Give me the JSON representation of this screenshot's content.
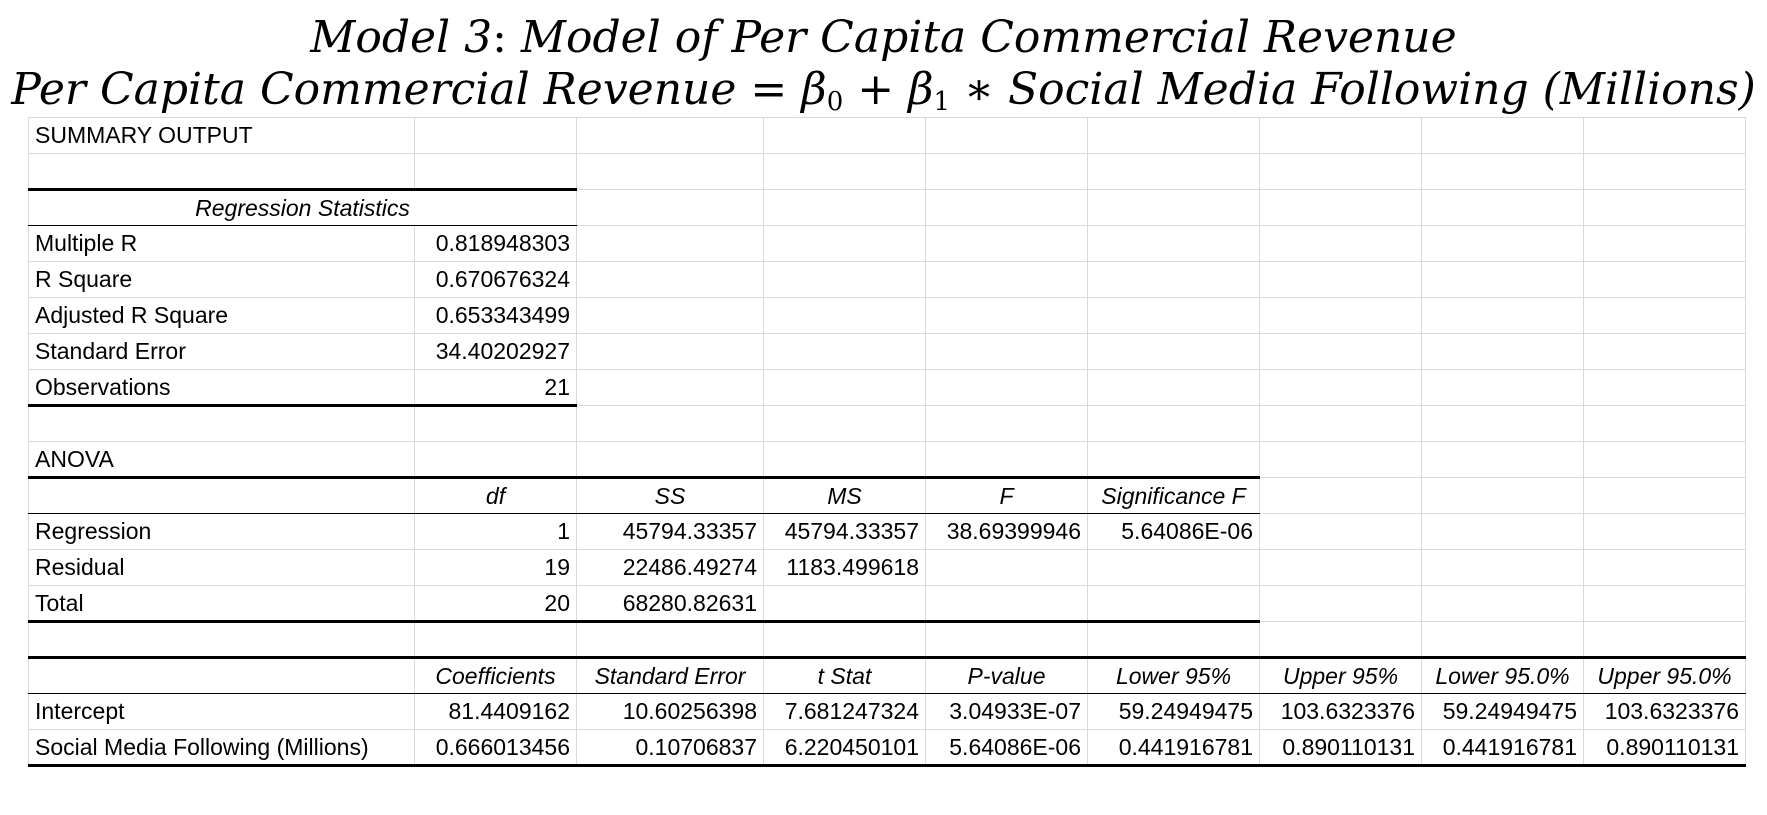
{
  "title": {
    "line1_prefix": "Model 3",
    "line1_sep": ": ",
    "line1_rest": "Model of Per Capita Commercial Revenue",
    "line2_lhs": "Per Capita Commercial Revenue",
    "line2_eq": " = ",
    "beta": "β",
    "sub0": "0",
    "plus": " + ",
    "sub1": "1",
    "times": " ∗ ",
    "line2_var": "Social Media Following ",
    "line2_unit": "(Millions)"
  },
  "summary": {
    "heading": "SUMMARY OUTPUT",
    "reg_stats_heading": "Regression Statistics",
    "stats": [
      {
        "label": "Multiple R",
        "value": "0.818948303"
      },
      {
        "label": "R Square",
        "value": "0.670676324"
      },
      {
        "label": "Adjusted R Square",
        "value": "0.653343499"
      },
      {
        "label": "Standard Error",
        "value": "34.40202927"
      },
      {
        "label": "Observations",
        "value": "21"
      }
    ]
  },
  "anova": {
    "heading": "ANOVA",
    "columns": [
      "df",
      "SS",
      "MS",
      "F",
      "Significance F"
    ],
    "rows": [
      {
        "label": "Regression",
        "df": "1",
        "ss": "45794.33357",
        "ms": "45794.33357",
        "f": "38.69399946",
        "sig": "5.64086E-06"
      },
      {
        "label": "Residual",
        "df": "19",
        "ss": "22486.49274",
        "ms": "1183.499618",
        "f": "",
        "sig": ""
      },
      {
        "label": "Total",
        "df": "20",
        "ss": "68280.82631",
        "ms": "",
        "f": "",
        "sig": ""
      }
    ]
  },
  "coefficients": {
    "columns": [
      "Coefficients",
      "Standard Error",
      "t Stat",
      "P-value",
      "Lower 95%",
      "Upper 95%",
      "Lower 95.0%",
      "Upper 95.0%"
    ],
    "rows": [
      {
        "label": "Intercept",
        "values": [
          "81.4409162",
          "10.60256398",
          "7.681247324",
          "3.04933E-07",
          "59.24949475",
          "103.6323376",
          "59.24949475",
          "103.6323376"
        ]
      },
      {
        "label": "Social Media Following (Millions)",
        "values": [
          "0.666013456",
          "0.10706837",
          "6.220450101",
          "5.64086E-06",
          "0.441916781",
          "0.890110131",
          "0.441916781",
          "0.890110131"
        ]
      }
    ]
  }
}
